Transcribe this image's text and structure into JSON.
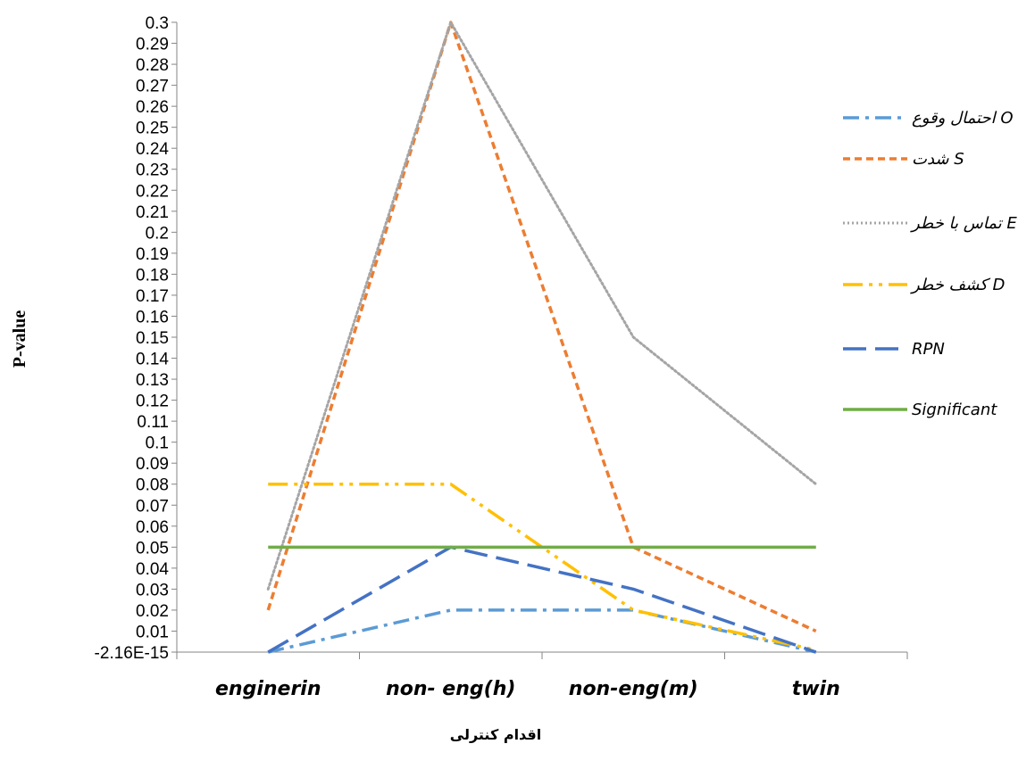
{
  "chart_data": {
    "type": "line",
    "title": "",
    "xlabel": "اقدام کنترلی",
    "ylabel": "P-value",
    "categories": [
      "enginerin",
      "non- eng(h)",
      "non-eng(m)",
      "twin"
    ],
    "ylim": [
      0,
      0.3
    ],
    "y_ticks": [
      "-2.16E-15",
      "0.01",
      "0.02",
      "0.03",
      "0.04",
      "0.05",
      "0.06",
      "0.07",
      "0.08",
      "0.09",
      "0.1",
      "0.11",
      "0.12",
      "0.13",
      "0.14",
      "0.15",
      "0.16",
      "0.17",
      "0.18",
      "0.19",
      "0.2",
      "0.21",
      "0.22",
      "0.23",
      "0.24",
      "0.25",
      "0.26",
      "0.27",
      "0.28",
      "0.29",
      "0.3"
    ],
    "grid": false,
    "legend_position": "right",
    "series": [
      {
        "name": "احتمال وقوع O",
        "values": [
          0.0,
          0.02,
          0.02,
          0.0
        ],
        "color": "#5B9BD5",
        "dash": "dash-dot"
      },
      {
        "name": "شدت S",
        "values": [
          0.02,
          0.3,
          0.05,
          0.01
        ],
        "color": "#ED7D31",
        "dash": "short-dash"
      },
      {
        "name": "تماس با خطر E",
        "values": [
          0.03,
          0.3,
          0.15,
          0.08
        ],
        "color": "#A5A5A5",
        "dash": "dot"
      },
      {
        "name": "کشف خطر D",
        "values": [
          0.08,
          0.08,
          0.02,
          0.001
        ],
        "color": "#FFC000",
        "dash": "long-dash-dot-dot"
      },
      {
        "name": "RPN",
        "values": [
          0.0,
          0.05,
          0.03,
          0.0
        ],
        "color": "#4472C4",
        "dash": "long-dash"
      },
      {
        "name": "Significant",
        "values": [
          0.05,
          0.05,
          0.05,
          0.05
        ],
        "color": "#70AD47",
        "dash": "solid"
      }
    ]
  }
}
